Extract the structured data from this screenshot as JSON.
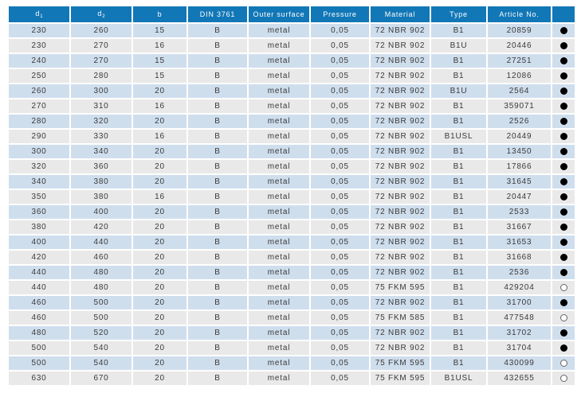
{
  "table": {
    "columns": [
      "d1",
      "d2",
      "b",
      "din",
      "outer-surface",
      "pressure",
      "material",
      "type",
      "article-no",
      "availability"
    ],
    "headers": [
      {
        "label": "d",
        "sub": "1"
      },
      {
        "label": "d",
        "sub": "2"
      },
      {
        "label": "b",
        "sub": ""
      },
      {
        "label": "DIN 3761",
        "sub": ""
      },
      {
        "label": "Outer surface",
        "sub": ""
      },
      {
        "label": "Pressure",
        "sub": ""
      },
      {
        "label": "Material",
        "sub": ""
      },
      {
        "label": "Type",
        "sub": ""
      },
      {
        "label": "Article No.",
        "sub": ""
      },
      {
        "label": "",
        "sub": ""
      }
    ],
    "rows": [
      [
        "230",
        "260",
        "15",
        "B",
        "metal",
        "0,05",
        "72 NBR 902",
        "B1",
        "20859",
        "filled"
      ],
      [
        "230",
        "270",
        "16",
        "B",
        "metal",
        "0,05",
        "72 NBR 902",
        "B1U",
        "20446",
        "filled"
      ],
      [
        "240",
        "270",
        "15",
        "B",
        "metal",
        "0,05",
        "72 NBR 902",
        "B1",
        "27251",
        "filled"
      ],
      [
        "250",
        "280",
        "15",
        "B",
        "metal",
        "0,05",
        "72 NBR 902",
        "B1",
        "12086",
        "filled"
      ],
      [
        "260",
        "300",
        "20",
        "B",
        "metal",
        "0,05",
        "72 NBR 902",
        "B1U",
        "2564",
        "filled"
      ],
      [
        "270",
        "310",
        "16",
        "B",
        "metal",
        "0,05",
        "72 NBR 902",
        "B1",
        "359071",
        "filled"
      ],
      [
        "280",
        "320",
        "20",
        "B",
        "metal",
        "0,05",
        "72 NBR 902",
        "B1",
        "2526",
        "filled"
      ],
      [
        "290",
        "330",
        "16",
        "B",
        "metal",
        "0,05",
        "72 NBR 902",
        "B1USL",
        "20449",
        "filled"
      ],
      [
        "300",
        "340",
        "20",
        "B",
        "metal",
        "0,05",
        "72 NBR 902",
        "B1",
        "13450",
        "filled"
      ],
      [
        "320",
        "360",
        "20",
        "B",
        "metal",
        "0,05",
        "72 NBR 902",
        "B1",
        "17866",
        "filled"
      ],
      [
        "340",
        "380",
        "20",
        "B",
        "metal",
        "0,05",
        "72 NBR 902",
        "B1",
        "31645",
        "filled"
      ],
      [
        "350",
        "380",
        "16",
        "B",
        "metal",
        "0,05",
        "72 NBR 902",
        "B1",
        "20447",
        "filled"
      ],
      [
        "360",
        "400",
        "20",
        "B",
        "metal",
        "0,05",
        "72 NBR 902",
        "B1",
        "2533",
        "filled"
      ],
      [
        "380",
        "420",
        "20",
        "B",
        "metal",
        "0,05",
        "72 NBR 902",
        "B1",
        "31667",
        "filled"
      ],
      [
        "400",
        "440",
        "20",
        "B",
        "metal",
        "0,05",
        "72 NBR 902",
        "B1",
        "31653",
        "filled"
      ],
      [
        "420",
        "460",
        "20",
        "B",
        "metal",
        "0,05",
        "72 NBR 902",
        "B1",
        "31668",
        "filled"
      ],
      [
        "440",
        "480",
        "20",
        "B",
        "metal",
        "0,05",
        "72 NBR 902",
        "B1",
        "2536",
        "filled"
      ],
      [
        "440",
        "480",
        "20",
        "B",
        "metal",
        "0,05",
        "75 FKM 595",
        "B1",
        "429204",
        "open"
      ],
      [
        "460",
        "500",
        "20",
        "B",
        "metal",
        "0,05",
        "72 NBR 902",
        "B1",
        "31700",
        "filled"
      ],
      [
        "460",
        "500",
        "20",
        "B",
        "metal",
        "0,05",
        "75 FKM 585",
        "B1",
        "477548",
        "open"
      ],
      [
        "480",
        "520",
        "20",
        "B",
        "metal",
        "0,05",
        "72 NBR 902",
        "B1",
        "31702",
        "filled"
      ],
      [
        "500",
        "540",
        "20",
        "B",
        "metal",
        "0,05",
        "72 NBR 902",
        "B1",
        "31704",
        "filled"
      ],
      [
        "500",
        "540",
        "20",
        "B",
        "metal",
        "0,05",
        "75 FKM 595",
        "B1",
        "430099",
        "open"
      ],
      [
        "630",
        "670",
        "20",
        "B",
        "metal",
        "0,05",
        "75 FKM 595",
        "B1USL",
        "432655",
        "open"
      ]
    ]
  },
  "icons": {
    "filled": "filled-circle-icon",
    "open": "open-circle-icon"
  },
  "colors": {
    "header_bg": "#1277b6",
    "row_blue": "#cfdeed",
    "row_gray": "#e9e9e9",
    "text": "#3a3a3a",
    "header_text": "#ffffff"
  }
}
